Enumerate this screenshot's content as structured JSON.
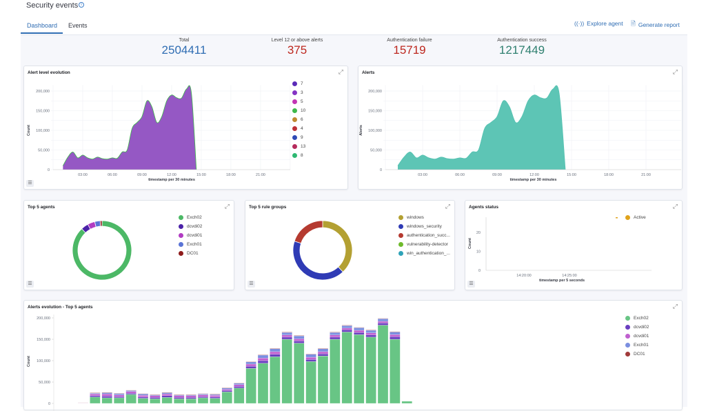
{
  "header": {
    "title": "Security events",
    "tabs": [
      "Dashboard",
      "Events"
    ],
    "explore_agent": "Explore agent",
    "generate_report": "Generate report"
  },
  "stats": [
    {
      "label": "Total",
      "value": "2504411",
      "color": "#2f6db3"
    },
    {
      "label": "Level 12 or above alerts",
      "value": "375",
      "color": "#bd271e"
    },
    {
      "label": "Authentication failure",
      "value": "15719",
      "color": "#bd271e"
    },
    {
      "label": "Authentication success",
      "value": "1217449",
      "color": "#2e7f6f"
    }
  ],
  "chart_data": [
    {
      "id": "alert-level",
      "type": "area",
      "title": "Alert level evolution",
      "xlabel": "timestamp per 30 minutes",
      "ylabel": "Count",
      "xticks": [
        "03:00",
        "06:00",
        "09:00",
        "12:00",
        "15:00",
        "18:00",
        "21:00"
      ],
      "xtick_hours": [
        3,
        6,
        9,
        12,
        15,
        18,
        21
      ],
      "yticks": [
        0,
        50000,
        100000,
        150000,
        200000
      ],
      "ytick_labels": [
        "0",
        "50,000",
        "100,000",
        "150,000",
        "200,000"
      ],
      "ylim": [
        0,
        215000
      ],
      "x_hours": [
        1,
        1.5,
        2,
        2.5,
        3,
        3.5,
        4,
        4.5,
        5,
        5.5,
        6,
        6.5,
        7,
        7.5,
        8,
        8.5,
        9,
        9.5,
        10,
        10.5,
        11,
        11.5,
        12,
        12.5,
        13,
        13.5,
        14,
        14.5
      ],
      "values": [
        10000,
        32000,
        45000,
        30000,
        37000,
        30000,
        27000,
        32000,
        28000,
        27000,
        30000,
        29000,
        45000,
        50000,
        105000,
        120000,
        135000,
        175000,
        160000,
        120000,
        135000,
        175000,
        190000,
        183000,
        182000,
        205000,
        195000,
        0
      ],
      "fill": "#8f4fc1",
      "edge": "#3db84a",
      "legend": [
        {
          "name": "7",
          "color": "#5b2bb8"
        },
        {
          "name": "3",
          "color": "#8433c4"
        },
        {
          "name": "5",
          "color": "#c235b4"
        },
        {
          "name": "10",
          "color": "#3db84a"
        },
        {
          "name": "6",
          "color": "#bf8a30"
        },
        {
          "name": "4",
          "color": "#bd3036"
        },
        {
          "name": "9",
          "color": "#2f4ab5"
        },
        {
          "name": "13",
          "color": "#b52b5c"
        },
        {
          "name": "8",
          "color": "#2eb872"
        }
      ]
    },
    {
      "id": "alerts",
      "type": "area",
      "title": "Alerts",
      "xlabel": "timestamp per 30 minutes",
      "ylabel": "Alerts",
      "xticks": [
        "03:00",
        "06:00",
        "09:00",
        "12:00",
        "15:00",
        "18:00",
        "21:00"
      ],
      "xtick_hours": [
        3,
        6,
        9,
        12,
        15,
        18,
        21
      ],
      "yticks": [
        0,
        50000,
        100000,
        150000,
        200000
      ],
      "ytick_labels": [
        "0",
        "50,000",
        "100,000",
        "150,000",
        "200,000"
      ],
      "ylim": [
        0,
        215000
      ],
      "x_hours": [
        1,
        1.5,
        2,
        2.5,
        3,
        3.5,
        4,
        4.5,
        5,
        5.5,
        6,
        6.5,
        7,
        7.5,
        8,
        8.5,
        9,
        9.5,
        10,
        10.5,
        11,
        11.5,
        12,
        12.5,
        13,
        13.5,
        14,
        14.5
      ],
      "values": [
        10000,
        32000,
        45000,
        30000,
        37000,
        30000,
        27000,
        32000,
        28000,
        27000,
        30000,
        29000,
        45000,
        50000,
        105000,
        120000,
        135000,
        175000,
        160000,
        120000,
        135000,
        175000,
        190000,
        183000,
        182000,
        205000,
        195000,
        0
      ],
      "fill": "#54c2b1",
      "edge": "#54c2b1"
    },
    {
      "id": "top-agents",
      "type": "pie",
      "title": "Top 5 agents",
      "slices": [
        {
          "name": "Exch02",
          "value": 88,
          "color": "#4cb866"
        },
        {
          "name": "dcvdi02",
          "value": 4,
          "color": "#4b22a8"
        },
        {
          "name": "dcvdi01",
          "value": 4,
          "color": "#b13cc2"
        },
        {
          "name": "Exch01",
          "value": 3,
          "color": "#5a74d6"
        },
        {
          "name": "DC01",
          "value": 1,
          "color": "#8e1b1b"
        }
      ]
    },
    {
      "id": "top-rule-groups",
      "type": "pie",
      "title": "Top 5 rule groups",
      "slices": [
        {
          "name": "windows",
          "value": 38,
          "color": "#b3a032"
        },
        {
          "name": "windows_security",
          "value": 42,
          "color": "#2f3bb5"
        },
        {
          "name": "authentication_succ...",
          "value": 20,
          "color": "#b53a30"
        },
        {
          "name": "vulnerability-detector",
          "value": 0,
          "color": "#6fba2c"
        },
        {
          "name": "win_authentication_...",
          "value": 0,
          "color": "#2ea3b8"
        }
      ]
    },
    {
      "id": "agents-status",
      "type": "line",
      "title": "Agents status",
      "xlabel": "timestamp per 5 seconds",
      "ylabel": "Count",
      "yticks": [
        0,
        10,
        20
      ],
      "ylim": [
        0,
        28
      ],
      "xticks": [
        "14:20:00",
        "14:25:00"
      ],
      "legend": [
        {
          "name": "Active",
          "color": "#e0a31c"
        }
      ]
    },
    {
      "id": "alerts-evolution",
      "type": "bar",
      "title": "Alerts evolution - Top 5 agents",
      "ylabel": "Count",
      "yticks": [
        0,
        50000,
        100000,
        150000,
        200000
      ],
      "ytick_labels": [
        "0",
        "50,000",
        "100,000",
        "150,000",
        "200,000"
      ],
      "ylim": [
        0,
        200000
      ],
      "series": [
        {
          "name": "Exch02",
          "color": "#68c585",
          "values": [
            0,
            15000,
            13000,
            13000,
            21000,
            12000,
            11000,
            14000,
            11000,
            11000,
            13000,
            12000,
            27000,
            36000,
            82000,
            94000,
            109000,
            150000,
            141000,
            98000,
            111000,
            150000,
            167000,
            161000,
            155000,
            183000,
            150000,
            5000
          ]
        },
        {
          "name": "dcvdi02",
          "color": "#6a3fc0",
          "values": [
            500,
            3000,
            4000,
            3000,
            3000,
            3000,
            3000,
            4000,
            3000,
            3000,
            3000,
            3000,
            3000,
            4000,
            5000,
            6000,
            6000,
            5000,
            5000,
            5000,
            5000,
            5000,
            5000,
            5000,
            5000,
            5000,
            6000,
            0
          ]
        },
        {
          "name": "dcvdi01",
          "color": "#c060cf",
          "values": [
            500,
            4000,
            5000,
            4000,
            4000,
            4000,
            4000,
            4000,
            4000,
            4000,
            4000,
            4000,
            3000,
            4000,
            5000,
            6000,
            6000,
            5000,
            5000,
            5000,
            5000,
            5000,
            4000,
            5000,
            5000,
            4000,
            5000,
            0
          ]
        },
        {
          "name": "Exch01",
          "color": "#7b8fe0",
          "values": [
            500,
            2000,
            3000,
            3000,
            2000,
            3000,
            2000,
            3000,
            2000,
            2000,
            2000,
            2000,
            3000,
            3000,
            5000,
            7000,
            7000,
            6000,
            7000,
            7000,
            7000,
            6000,
            6000,
            6000,
            6000,
            6000,
            6000,
            0
          ]
        },
        {
          "name": "DC01",
          "color": "#a13a3a",
          "values": [
            500,
            1000,
            1000,
            1000,
            1000,
            1000,
            1000,
            1000,
            1000,
            1000,
            1000,
            1000,
            1000,
            1000,
            1000,
            1000,
            1000,
            1000,
            1000,
            1000,
            1000,
            1000,
            1000,
            1000,
            1000,
            1000,
            1000,
            0
          ]
        }
      ]
    }
  ]
}
